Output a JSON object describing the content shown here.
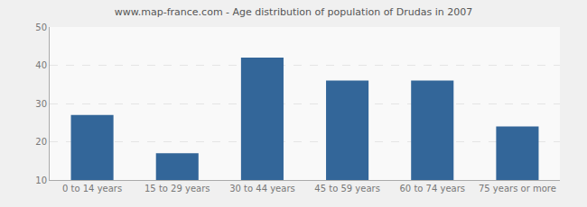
{
  "chart_data": {
    "type": "bar",
    "title": "www.map-france.com - Age distribution of population of Drudas in 2007",
    "categories": [
      "0 to 14 years",
      "15 to 29 years",
      "30 to 44 years",
      "45 to 59 years",
      "60 to 74 years",
      "75 years or more"
    ],
    "values": [
      27,
      17,
      42,
      36,
      36,
      24
    ],
    "color": "#336699",
    "ylim": [
      10,
      50
    ],
    "yticks": [
      10,
      20,
      30,
      40,
      50
    ],
    "grid": true
  }
}
